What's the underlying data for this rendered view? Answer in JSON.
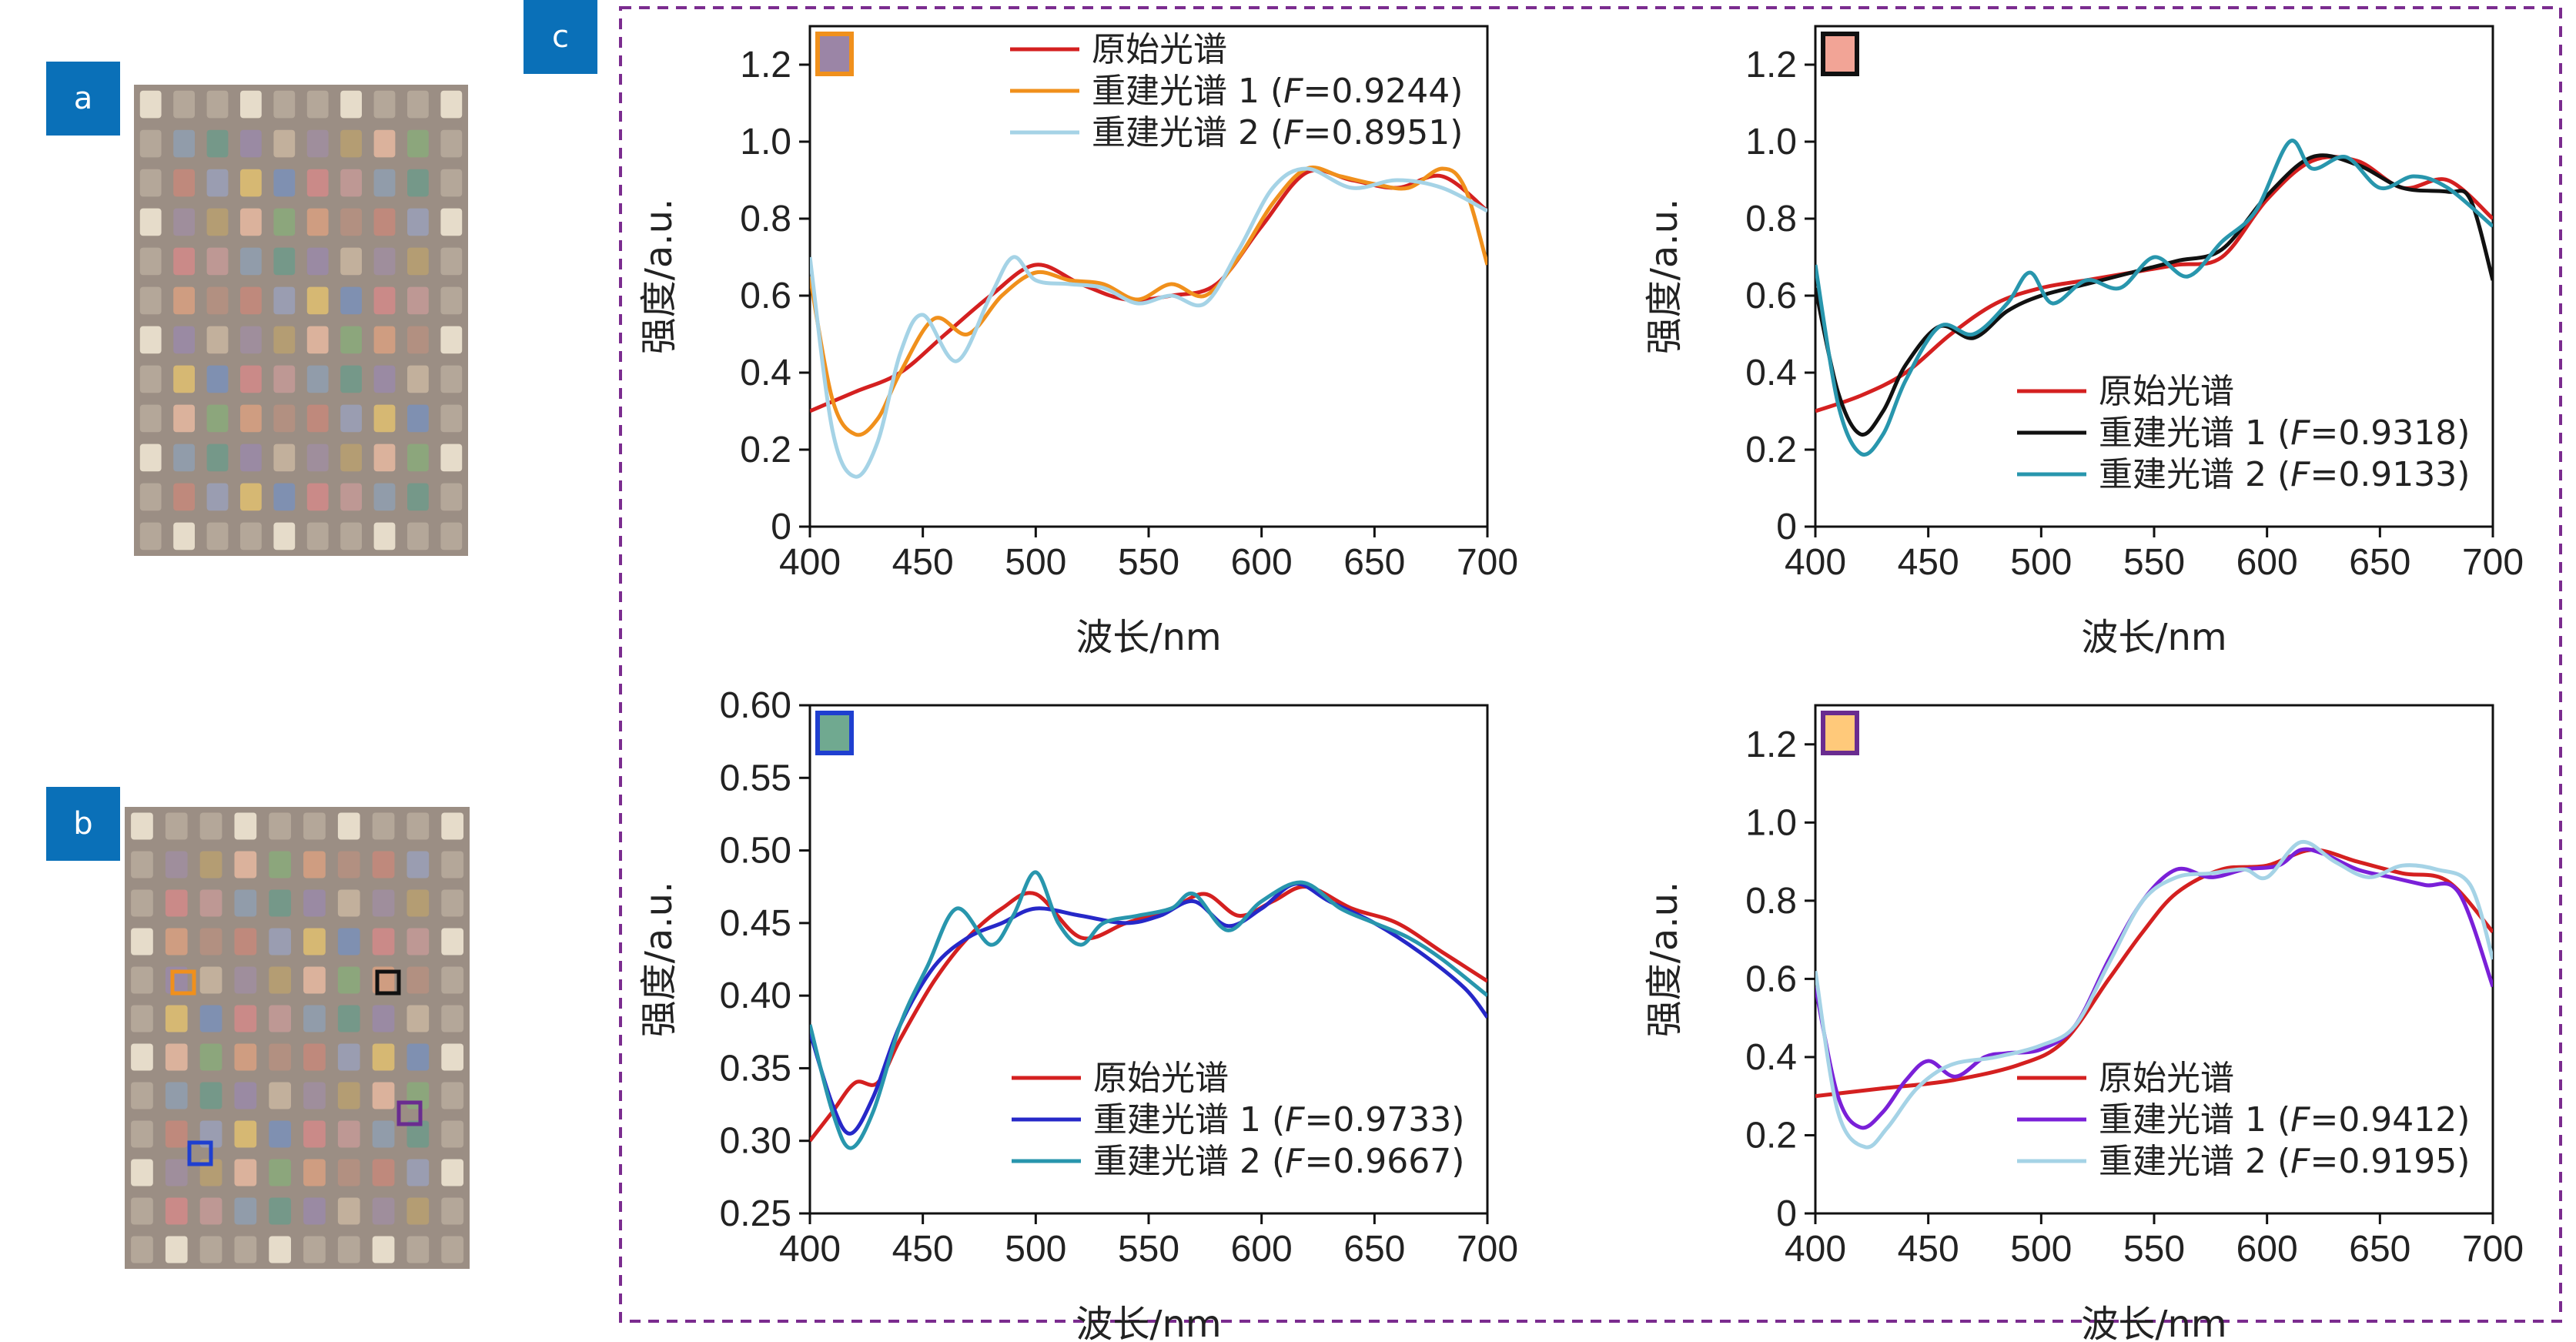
{
  "panel_labels": [
    "a",
    "b",
    "c"
  ],
  "chart_data": [
    {
      "type": "line",
      "xlabel": "波长/nm",
      "ylabel": "强度/a.u.",
      "xlim": [
        400,
        700
      ],
      "ylim": [
        0,
        1.3
      ],
      "xticks": [
        "400",
        "450",
        "500",
        "550",
        "600",
        "650",
        "700"
      ],
      "yticks": [
        "0",
        "0.2",
        "0.4",
        "0.6",
        "0.8",
        "1.0",
        "1.2"
      ],
      "swatch": {
        "fill": "#9b85a6",
        "border": "#f0901c"
      },
      "legend_position": "top-right",
      "series": [
        {
          "name": "原始光谱",
          "fvalue": "",
          "color": "#d42020",
          "x": [
            400,
            420,
            440,
            460,
            480,
            500,
            520,
            540,
            560,
            580,
            600,
            620,
            640,
            660,
            680,
            700
          ],
          "y": [
            0.3,
            0.35,
            0.4,
            0.5,
            0.6,
            0.68,
            0.63,
            0.59,
            0.6,
            0.63,
            0.78,
            0.92,
            0.9,
            0.88,
            0.91,
            0.82
          ]
        },
        {
          "name": "重建光谱 1",
          "fvalue": "0.9244",
          "color": "#f0901c",
          "x": [
            400,
            410,
            420,
            430,
            440,
            455,
            470,
            485,
            500,
            515,
            530,
            545,
            560,
            575,
            590,
            605,
            620,
            635,
            650,
            665,
            680,
            690,
            700
          ],
          "y": [
            0.65,
            0.33,
            0.24,
            0.28,
            0.4,
            0.54,
            0.5,
            0.6,
            0.66,
            0.64,
            0.63,
            0.59,
            0.63,
            0.6,
            0.7,
            0.84,
            0.93,
            0.91,
            0.89,
            0.88,
            0.93,
            0.88,
            0.68
          ]
        },
        {
          "name": "重建光谱 2",
          "fvalue": "0.8951",
          "color": "#a5d3e6",
          "x": [
            400,
            410,
            420,
            430,
            440,
            450,
            465,
            480,
            490,
            500,
            515,
            530,
            545,
            560,
            575,
            590,
            605,
            620,
            640,
            660,
            680,
            700
          ],
          "y": [
            0.7,
            0.25,
            0.13,
            0.22,
            0.45,
            0.55,
            0.43,
            0.6,
            0.7,
            0.64,
            0.63,
            0.62,
            0.58,
            0.6,
            0.58,
            0.72,
            0.88,
            0.93,
            0.88,
            0.9,
            0.88,
            0.82
          ]
        }
      ]
    },
    {
      "type": "line",
      "xlabel": "波长/nm",
      "ylabel": "强度/a.u.",
      "xlim": [
        400,
        700
      ],
      "ylim": [
        0,
        1.3
      ],
      "xticks": [
        "400",
        "450",
        "500",
        "550",
        "600",
        "650",
        "700"
      ],
      "yticks": [
        "0",
        "0.2",
        "0.4",
        "0.6",
        "0.8",
        "1.0",
        "1.2"
      ],
      "swatch": {
        "fill": "#f2a496",
        "border": "#111111"
      },
      "legend_position": "bottom-right",
      "series": [
        {
          "name": "原始光谱",
          "fvalue": "",
          "color": "#d42020",
          "x": [
            400,
            420,
            440,
            460,
            480,
            500,
            520,
            540,
            560,
            580,
            600,
            620,
            640,
            660,
            680,
            700
          ],
          "y": [
            0.3,
            0.34,
            0.4,
            0.5,
            0.58,
            0.62,
            0.64,
            0.66,
            0.68,
            0.7,
            0.85,
            0.95,
            0.95,
            0.88,
            0.9,
            0.8
          ]
        },
        {
          "name": "重建光谱 1",
          "fvalue": "0.9318",
          "color": "#111111",
          "x": [
            400,
            410,
            420,
            430,
            440,
            455,
            470,
            485,
            500,
            520,
            540,
            560,
            580,
            600,
            620,
            640,
            660,
            680,
            690,
            700
          ],
          "y": [
            0.62,
            0.35,
            0.24,
            0.3,
            0.42,
            0.52,
            0.49,
            0.56,
            0.6,
            0.63,
            0.66,
            0.69,
            0.72,
            0.86,
            0.96,
            0.94,
            0.88,
            0.87,
            0.85,
            0.64
          ]
        },
        {
          "name": "重建光谱 2",
          "fvalue": "0.9133",
          "color": "#2896ad",
          "x": [
            400,
            410,
            420,
            430,
            440,
            455,
            470,
            485,
            495,
            505,
            520,
            535,
            550,
            565,
            580,
            595,
            610,
            620,
            635,
            650,
            665,
            680,
            700
          ],
          "y": [
            0.68,
            0.32,
            0.19,
            0.24,
            0.38,
            0.52,
            0.5,
            0.58,
            0.66,
            0.58,
            0.64,
            0.62,
            0.7,
            0.65,
            0.74,
            0.82,
            1.0,
            0.93,
            0.96,
            0.88,
            0.91,
            0.88,
            0.78
          ]
        }
      ]
    },
    {
      "type": "line",
      "xlabel": "波长/nm",
      "ylabel": "强度/a.u.",
      "xlim": [
        400,
        700
      ],
      "ylim": [
        0.25,
        0.6
      ],
      "xticks": [
        "400",
        "450",
        "500",
        "550",
        "600",
        "650",
        "700"
      ],
      "yticks": [
        "0.25",
        "0.30",
        "0.35",
        "0.40",
        "0.45",
        "0.50",
        "0.55",
        "0.60"
      ],
      "swatch": {
        "fill": "#70a990",
        "border": "#1f3fd0"
      },
      "legend_position": "bottom-right",
      "series": [
        {
          "name": "原始光谱",
          "fvalue": "",
          "color": "#d42020",
          "x": [
            400,
            410,
            420,
            430,
            440,
            455,
            470,
            485,
            500,
            520,
            540,
            560,
            575,
            590,
            605,
            620,
            640,
            660,
            680,
            700
          ],
          "y": [
            0.3,
            0.32,
            0.34,
            0.34,
            0.37,
            0.41,
            0.44,
            0.46,
            0.47,
            0.44,
            0.45,
            0.46,
            0.47,
            0.455,
            0.465,
            0.475,
            0.46,
            0.45,
            0.43,
            0.41
          ]
        },
        {
          "name": "重建光谱 1",
          "fvalue": "0.9733",
          "color": "#2628c8",
          "x": [
            400,
            410,
            418,
            428,
            440,
            455,
            470,
            485,
            500,
            520,
            540,
            555,
            570,
            585,
            600,
            615,
            630,
            650,
            670,
            690,
            700
          ],
          "y": [
            0.375,
            0.325,
            0.305,
            0.33,
            0.38,
            0.42,
            0.44,
            0.45,
            0.46,
            0.455,
            0.45,
            0.455,
            0.465,
            0.448,
            0.46,
            0.477,
            0.465,
            0.45,
            0.43,
            0.405,
            0.385
          ]
        },
        {
          "name": "重建光谱 2",
          "fvalue": "0.9667",
          "color": "#2896ad",
          "x": [
            400,
            410,
            418,
            428,
            440,
            452,
            465,
            480,
            490,
            500,
            510,
            520,
            530,
            545,
            560,
            570,
            585,
            600,
            618,
            635,
            650,
            665,
            680,
            700
          ],
          "y": [
            0.38,
            0.32,
            0.295,
            0.32,
            0.38,
            0.42,
            0.46,
            0.435,
            0.455,
            0.485,
            0.45,
            0.435,
            0.45,
            0.455,
            0.46,
            0.47,
            0.445,
            0.465,
            0.478,
            0.46,
            0.45,
            0.44,
            0.425,
            0.4
          ]
        }
      ]
    },
    {
      "type": "line",
      "xlabel": "波长/nm",
      "ylabel": "强度/a.u.",
      "xlim": [
        400,
        700
      ],
      "ylim": [
        0,
        1.3
      ],
      "xticks": [
        "400",
        "450",
        "500",
        "550",
        "600",
        "650",
        "700"
      ],
      "yticks": [
        "0",
        "0.2",
        "0.4",
        "0.6",
        "0.8",
        "1.0",
        "1.2"
      ],
      "swatch": {
        "fill": "#ffc97a",
        "border": "#6a2c90"
      },
      "legend_position": "bottom-right",
      "series": [
        {
          "name": "原始光谱",
          "fvalue": "",
          "color": "#d42020",
          "x": [
            400,
            430,
            460,
            490,
            510,
            530,
            545,
            560,
            580,
            600,
            620,
            640,
            660,
            680,
            700
          ],
          "y": [
            0.3,
            0.32,
            0.34,
            0.38,
            0.44,
            0.6,
            0.72,
            0.82,
            0.88,
            0.89,
            0.93,
            0.9,
            0.87,
            0.85,
            0.72
          ]
        },
        {
          "name": "重建光谱 1",
          "fvalue": "0.9412",
          "color": "#7a20d8",
          "x": [
            400,
            410,
            420,
            430,
            440,
            450,
            462,
            475,
            485,
            500,
            515,
            530,
            545,
            560,
            575,
            590,
            605,
            615,
            625,
            640,
            655,
            670,
            685,
            700
          ],
          "y": [
            0.58,
            0.3,
            0.22,
            0.26,
            0.34,
            0.39,
            0.35,
            0.4,
            0.41,
            0.42,
            0.48,
            0.65,
            0.8,
            0.88,
            0.86,
            0.88,
            0.89,
            0.93,
            0.92,
            0.88,
            0.86,
            0.84,
            0.82,
            0.58
          ]
        },
        {
          "name": "重建光谱 2",
          "fvalue": "0.9195",
          "color": "#a5d3e6",
          "x": [
            400,
            410,
            422,
            432,
            445,
            460,
            480,
            500,
            515,
            530,
            545,
            560,
            575,
            590,
            600,
            615,
            630,
            645,
            660,
            675,
            690,
            700
          ],
          "y": [
            0.62,
            0.26,
            0.17,
            0.22,
            0.32,
            0.38,
            0.4,
            0.43,
            0.48,
            0.64,
            0.8,
            0.86,
            0.87,
            0.88,
            0.86,
            0.95,
            0.9,
            0.86,
            0.89,
            0.88,
            0.84,
            0.65
          ]
        }
      ]
    }
  ]
}
